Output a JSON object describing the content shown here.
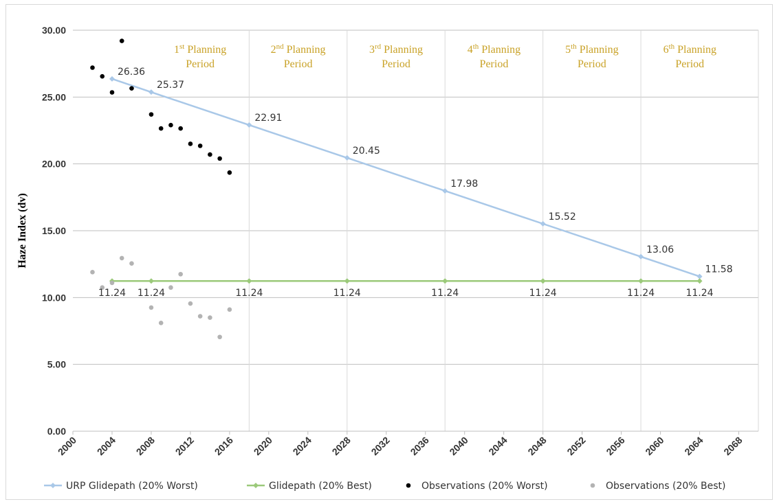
{
  "chart_data": {
    "type": "scatter",
    "xlim": [
      2000,
      2070
    ],
    "ylim": [
      0,
      30
    ],
    "xticks": [
      2000,
      2004,
      2008,
      2012,
      2016,
      2020,
      2024,
      2028,
      2032,
      2036,
      2040,
      2044,
      2048,
      2052,
      2056,
      2060,
      2064,
      2068
    ],
    "yticks": [
      "0.00",
      "5.00",
      "10.00",
      "15.00",
      "20.00",
      "25.00",
      "30.00"
    ],
    "ylabel": "Haze Index (dv)",
    "grid": "horizontal",
    "planning_periods": [
      {
        "num": "1",
        "sup": "st",
        "line1": "Planning",
        "line2": "Period",
        "start": 2008,
        "end": 2018
      },
      {
        "num": "2",
        "sup": "nd",
        "line1": "Planning",
        "line2": "Period",
        "start": 2018,
        "end": 2028
      },
      {
        "num": "3",
        "sup": "rd",
        "line1": "Planning",
        "line2": "Period",
        "start": 2028,
        "end": 2038
      },
      {
        "num": "4",
        "sup": "th",
        "line1": "Planning",
        "line2": "Period",
        "start": 2038,
        "end": 2048
      },
      {
        "num": "5",
        "sup": "th",
        "line1": "Planning",
        "line2": "Period",
        "start": 2048,
        "end": 2058
      },
      {
        "num": "6",
        "sup": "th",
        "line1": "Planning",
        "line2": "Period",
        "start": 2058,
        "end": 2068
      }
    ],
    "period_boundaries": [
      2018,
      2028,
      2038,
      2048,
      2058
    ],
    "series": [
      {
        "name": "URP Glidepath (20% Worst)",
        "kind": "line",
        "color": "#a9c8e8",
        "x": [
          2004,
          2008,
          2018,
          2028,
          2038,
          2048,
          2058,
          2064
        ],
        "y": [
          26.36,
          25.37,
          22.91,
          20.45,
          17.98,
          15.52,
          13.06,
          11.58
        ],
        "labels": [
          "26.36",
          "25.37",
          "22.91",
          "20.45",
          "17.98",
          "15.52",
          "13.06",
          "11.58"
        ]
      },
      {
        "name": "Glidepath (20% Best)",
        "kind": "line",
        "color": "#9bc97a",
        "x": [
          2004,
          2008,
          2018,
          2028,
          2038,
          2048,
          2058,
          2064
        ],
        "y": [
          11.24,
          11.24,
          11.24,
          11.24,
          11.24,
          11.24,
          11.24,
          11.24
        ],
        "labels": [
          "11.24",
          "11.24",
          "11.24",
          "11.24",
          "11.24",
          "11.24",
          "11.24",
          "11.24"
        ]
      },
      {
        "name": "Observations (20% Worst)",
        "kind": "scatter",
        "color": "#000000",
        "x": [
          2002,
          2003,
          2004,
          2005,
          2006,
          2008,
          2009,
          2010,
          2011,
          2012,
          2013,
          2014,
          2015,
          2016
        ],
        "y": [
          27.2,
          26.55,
          25.35,
          29.2,
          25.65,
          23.7,
          22.65,
          22.9,
          22.65,
          21.5,
          21.35,
          20.7,
          20.4,
          19.35
        ]
      },
      {
        "name": "Observations (20% Best)",
        "kind": "scatter",
        "color": "#b3b3b3",
        "x": [
          2002,
          2003,
          2004,
          2005,
          2006,
          2008,
          2009,
          2010,
          2011,
          2012,
          2013,
          2014,
          2015,
          2016
        ],
        "y": [
          11.9,
          10.75,
          11.1,
          12.95,
          12.55,
          9.25,
          8.1,
          10.75,
          11.75,
          9.55,
          8.6,
          8.5,
          7.05,
          9.1
        ]
      }
    ]
  }
}
